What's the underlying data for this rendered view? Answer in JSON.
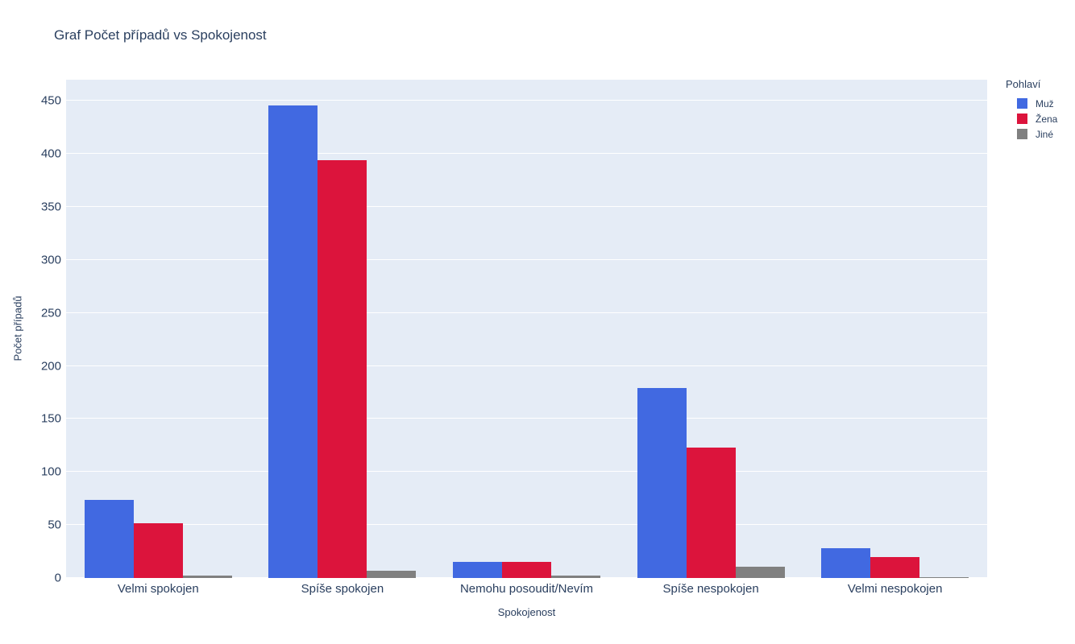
{
  "chart_data": {
    "type": "bar",
    "title": "Graf Počet případů vs Spokojenost",
    "xlabel": "Spokojenost",
    "ylabel": "Počet případů",
    "legend_title": "Pohlaví",
    "legend_position": "right-top-outside",
    "grid": true,
    "plot_bg": "#E5ECF6",
    "grid_color": "#ffffff",
    "text_color": "#2a3f5f",
    "ylim": [
      0,
      470
    ],
    "yticks": [
      0,
      50,
      100,
      150,
      200,
      250,
      300,
      350,
      400,
      450
    ],
    "categories": [
      "Velmi spokojen",
      "Spíše spokojen",
      "Nemohu posoudit/Nevím",
      "Spíše nespokojen",
      "Velmi nespokojen"
    ],
    "series": [
      {
        "name": "Muž",
        "color": "#4169E1",
        "values": [
          74,
          446,
          15,
          179,
          28
        ]
      },
      {
        "name": "Žena",
        "color": "#DC143C",
        "values": [
          52,
          394,
          15,
          123,
          20
        ]
      },
      {
        "name": "Jiné",
        "color": "#808080",
        "values": [
          2,
          7,
          2,
          11,
          1
        ]
      }
    ]
  }
}
